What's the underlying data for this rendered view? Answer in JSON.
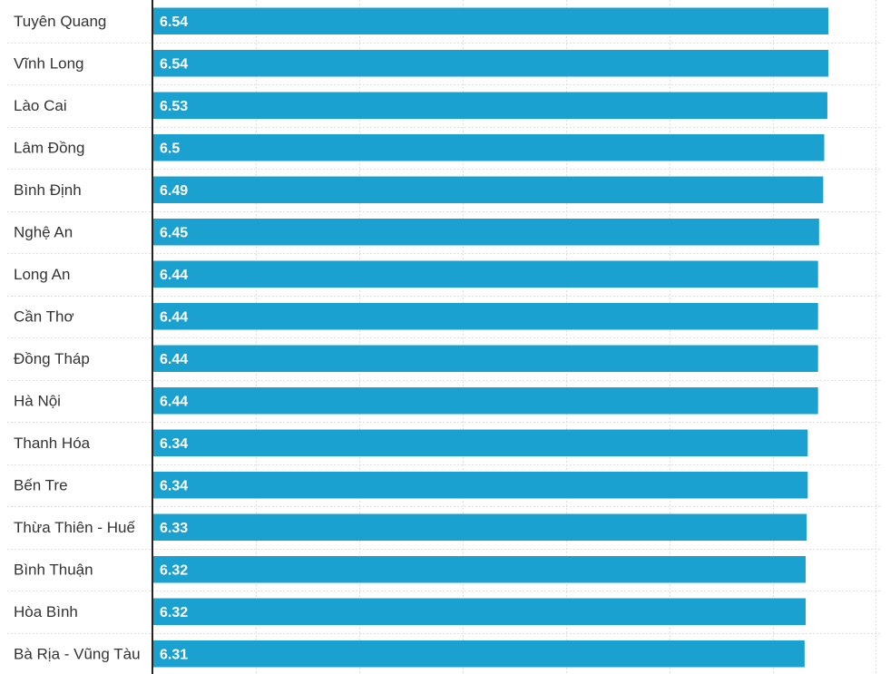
{
  "chart_data": {
    "type": "bar",
    "orientation": "horizontal",
    "categories": [
      "Tuyên Quang",
      "Vĩnh Long",
      "Lào Cai",
      "Lâm Đồng",
      "Bình Định",
      "Nghệ An",
      "Long An",
      "Cần Thơ",
      "Đồng Tháp",
      "Hà Nội",
      "Thanh Hóa",
      "Bến Tre",
      "Thừa Thiên - Huế",
      "Bình Thuận",
      "Hòa Bình",
      "Bà Rịa - Vũng Tàu"
    ],
    "values": [
      6.54,
      6.54,
      6.53,
      6.5,
      6.49,
      6.45,
      6.44,
      6.44,
      6.44,
      6.44,
      6.34,
      6.34,
      6.33,
      6.32,
      6.32,
      6.31
    ],
    "value_labels": [
      "6.54",
      "6.54",
      "6.53",
      "6.5",
      "6.49",
      "6.45",
      "6.44",
      "6.44",
      "6.44",
      "6.44",
      "6.34",
      "6.34",
      "6.33",
      "6.32",
      "6.32",
      "6.31"
    ],
    "xlim": [
      0,
      7
    ],
    "grid": true,
    "bar_color": "#1ba1cf",
    "gridline_color": "#e0e0e0",
    "axis_color": "#222222",
    "label_color": "#333333",
    "value_label_color": "#ffffff"
  }
}
